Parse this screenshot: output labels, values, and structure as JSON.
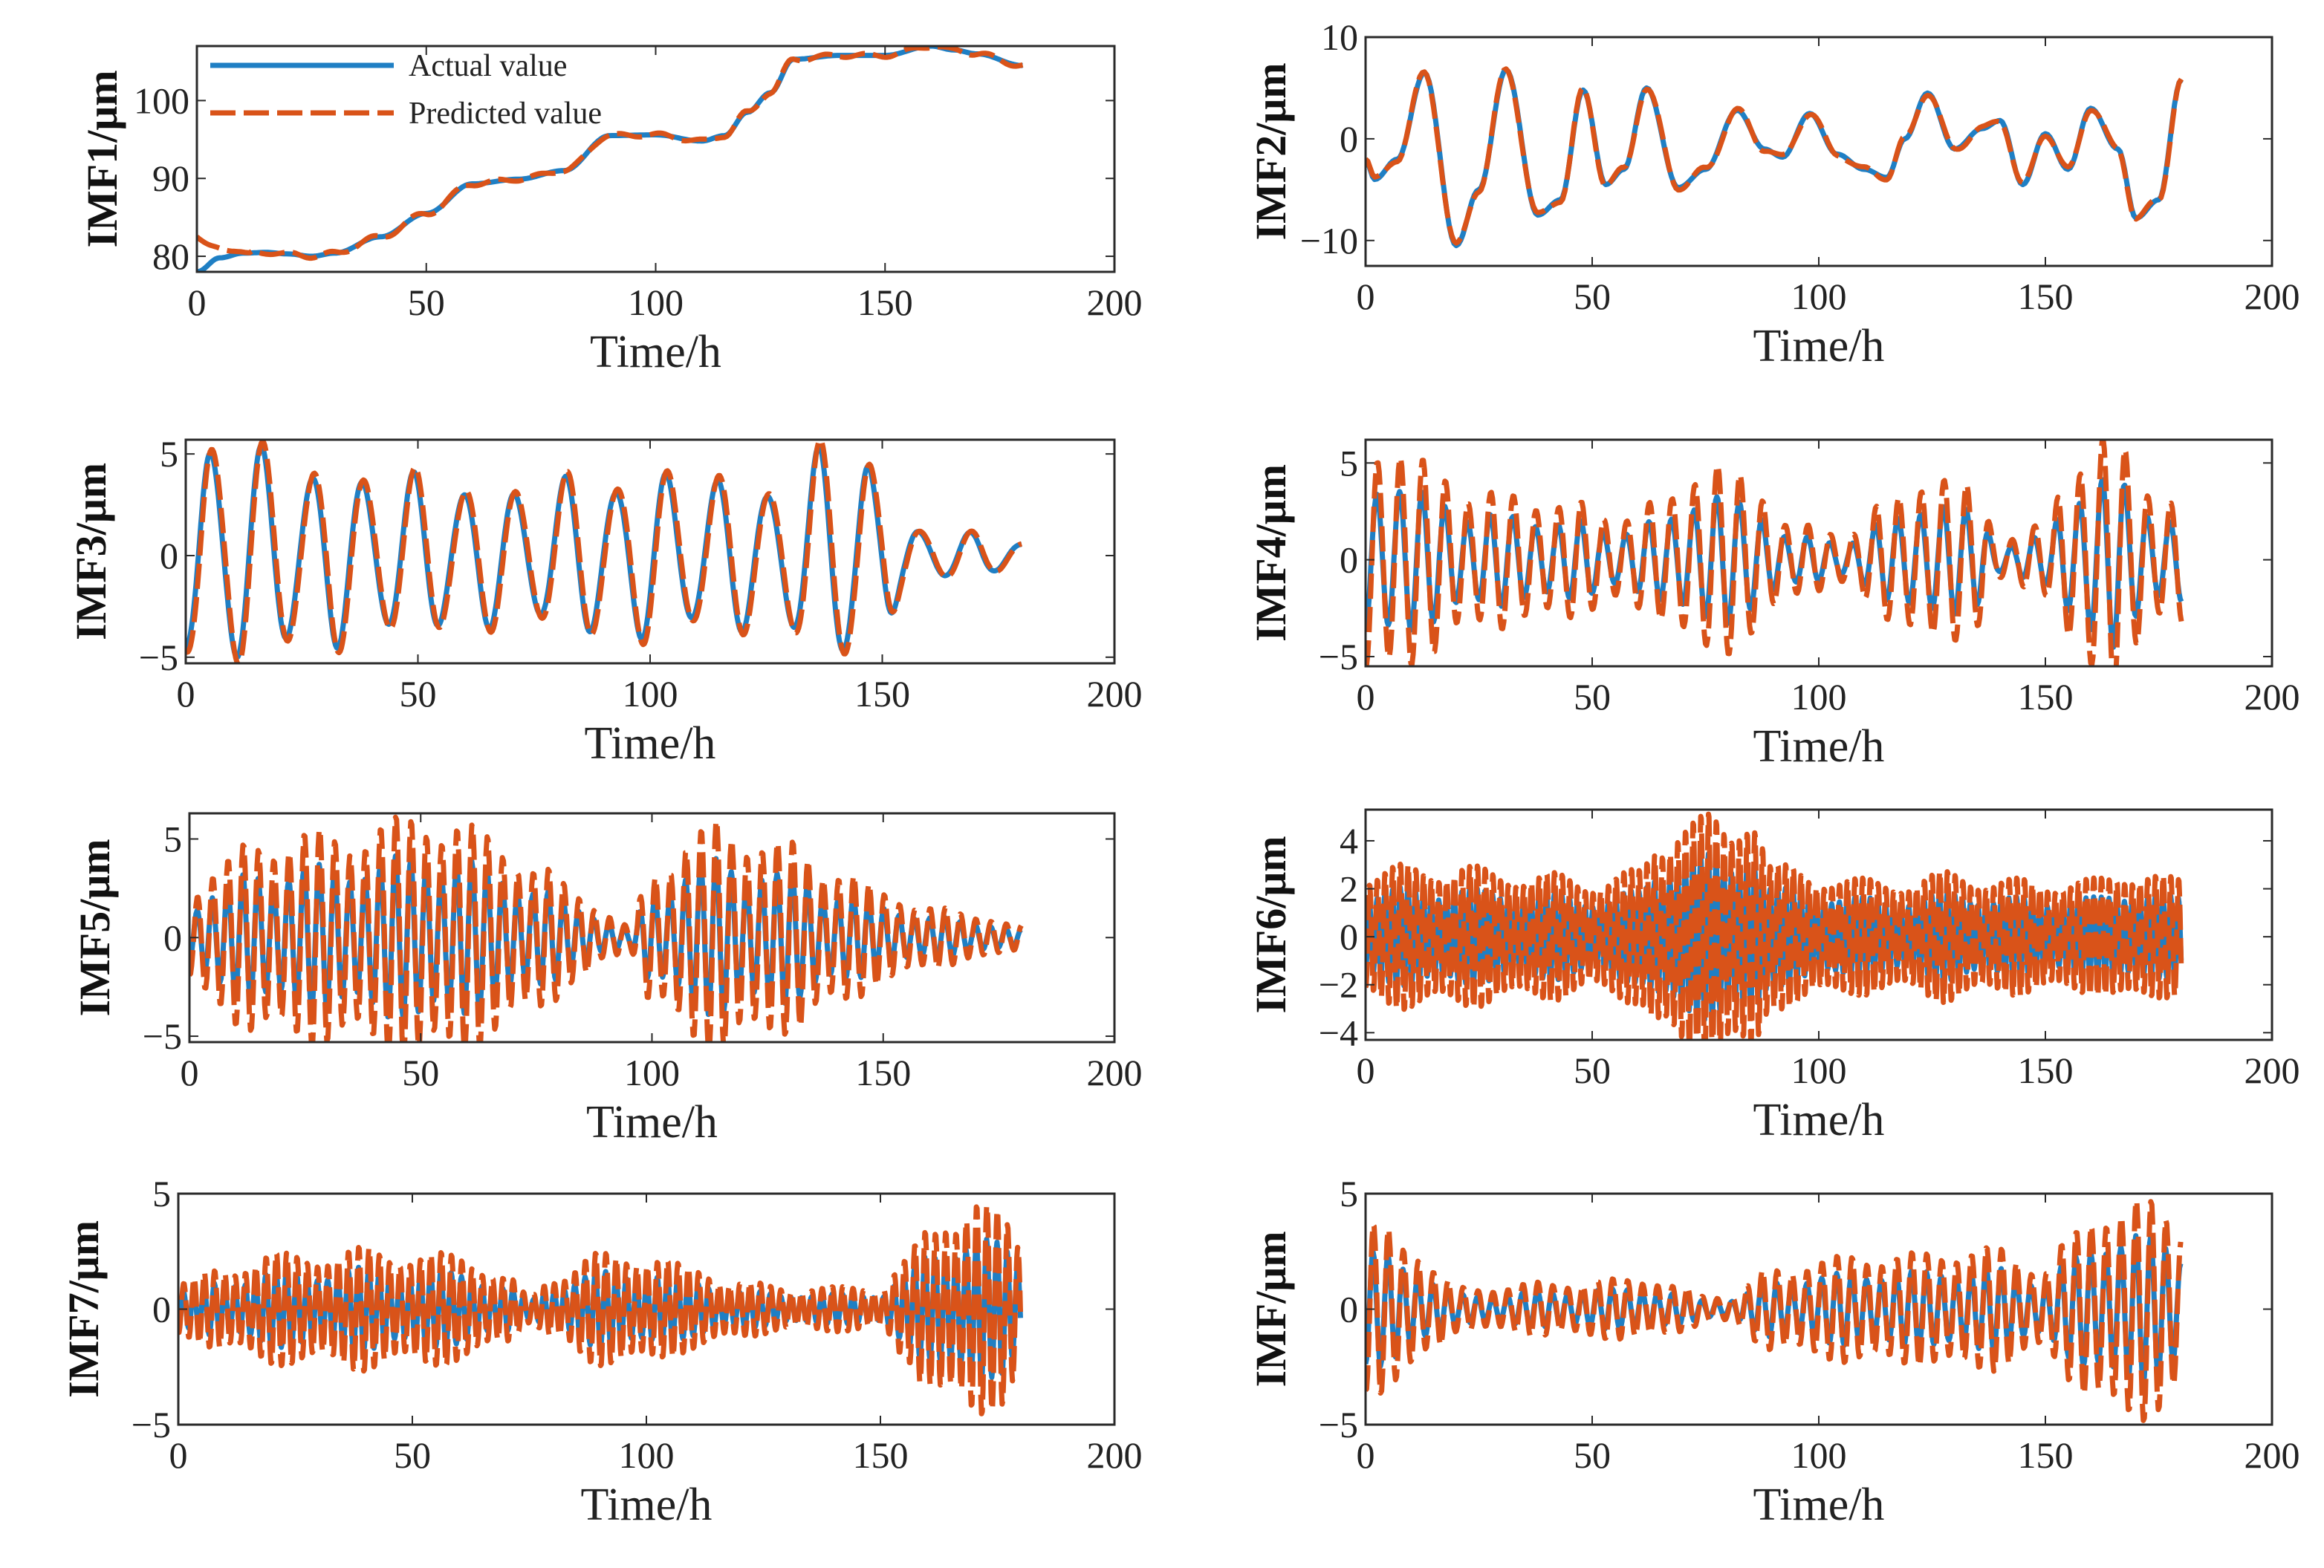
{
  "colors": {
    "actual": "#1f7fc4",
    "predicted": "#d95319"
  },
  "legend": {
    "actual": "Actual value",
    "predicted": "Predicted value"
  },
  "chart_data": [
    {
      "type": "line",
      "ylabel": "IMF1/μm",
      "xlabel": "Time/h",
      "xlim": [
        0,
        200
      ],
      "ylim": [
        78,
        107
      ],
      "xticks": [
        0,
        50,
        100,
        150,
        200
      ],
      "yticks": [
        80,
        90,
        100
      ],
      "legend": "top-left",
      "keypoints": {
        "x": [
          0,
          5,
          10,
          15,
          20,
          25,
          30,
          40,
          50,
          60,
          70,
          80,
          90,
          100,
          110,
          115,
          120,
          125,
          130,
          140,
          150,
          160,
          165,
          170,
          180
        ],
        "y": [
          78,
          79.8,
          80.4,
          80.5,
          80.3,
          80,
          80.4,
          82.5,
          85.5,
          89.3,
          89.9,
          91,
          95.5,
          95.6,
          94.8,
          95.5,
          98.5,
          101,
          105.3,
          105.8,
          105.8,
          107,
          106.5,
          106,
          104.5
        ]
      },
      "predicted_start": [
        82.5,
        81.8,
        81
      ]
    },
    {
      "type": "line",
      "ylabel": "IMF2/μm",
      "xlabel": "Time/h",
      "xlim": [
        0,
        200
      ],
      "ylim": [
        -12.5,
        10
      ],
      "xticks": [
        0,
        50,
        100,
        150,
        200
      ],
      "yticks": [
        -10,
        0,
        10
      ],
      "keypoints": {
        "x": [
          0,
          2,
          7,
          13,
          20,
          25,
          31,
          38,
          43,
          48,
          53,
          57,
          62,
          69,
          75,
          82,
          88,
          92,
          98,
          104,
          110,
          115,
          119,
          124,
          130,
          136,
          140,
          145,
          150,
          155,
          160,
          166,
          170,
          175,
          180
        ],
        "y": [
          -2,
          -4,
          -2,
          6.5,
          -10.5,
          -5,
          6.8,
          -7.5,
          -6,
          4.8,
          -4.5,
          -3,
          5,
          -4.8,
          -3,
          2.8,
          -1,
          -1.8,
          2.5,
          -1.5,
          -3,
          -3.8,
          0,
          4.5,
          -1,
          1,
          1.8,
          -4.5,
          0.5,
          -3,
          3,
          -1,
          -7.8,
          -6,
          5.8
        ]
      }
    },
    {
      "type": "line",
      "ylabel": "IMF3/μm",
      "xlabel": "Time/h",
      "xlim": [
        0,
        200
      ],
      "ylim": [
        -5.3,
        5.7
      ],
      "xticks": [
        0,
        50,
        100,
        150,
        200
      ],
      "yticks": [
        -5,
        0,
        5
      ],
      "period": 10.9,
      "x_end": 180,
      "amplitude": {
        "x": [
          0,
          5,
          10,
          20,
          30,
          40,
          50,
          60,
          70,
          80,
          90,
          100,
          110,
          120,
          130,
          140,
          145,
          150,
          155,
          160,
          165,
          170,
          175,
          180
        ],
        "y": [
          4,
          5.7,
          5.2,
          4.5,
          4,
          3.8,
          3.6,
          3.4,
          3,
          3.5,
          3.6,
          3.8,
          3.6,
          3.4,
          3.4,
          5.4,
          5.2,
          3.2,
          1.5,
          1.2,
          1,
          1,
          0.8,
          0.6
        ]
      }
    },
    {
      "type": "line",
      "ylabel": "IMF4/μm",
      "xlabel": "Time/h",
      "xlim": [
        0,
        200
      ],
      "ylim": [
        -5.5,
        6.2
      ],
      "xticks": [
        0,
        50,
        100,
        150,
        200
      ],
      "yticks": [
        -5,
        0,
        5
      ],
      "period": 5,
      "x_end": 180,
      "amplitude": {
        "x": [
          0,
          5,
          15,
          25,
          35,
          45,
          55,
          65,
          75,
          85,
          95,
          105,
          115,
          125,
          135,
          140,
          150,
          155,
          160,
          165,
          170,
          175,
          180
        ],
        "y": [
          5,
          5.5,
          4,
          3,
          2.8,
          2.5,
          2,
          2.5,
          4.5,
          3.5,
          1.5,
          1.2,
          2.5,
          4,
          3,
          1,
          1.5,
          4,
          5.5,
          5.5,
          4,
          3,
          2.8
        ]
      }
    },
    {
      "type": "line",
      "ylabel": "IMF5/μm",
      "xlabel": "Time/h",
      "xlim": [
        0,
        200
      ],
      "ylim": [
        -5.3,
        6.3
      ],
      "xticks": [
        0,
        50,
        100,
        150,
        200
      ],
      "yticks": [
        -5,
        0,
        5
      ],
      "period": 3.3,
      "x_end": 180,
      "amplitude": {
        "x": [
          0,
          5,
          15,
          25,
          35,
          45,
          50,
          55,
          65,
          75,
          85,
          90,
          95,
          100,
          110,
          115,
          120,
          130,
          140,
          150,
          160,
          170,
          180
        ],
        "y": [
          2,
          3,
          4.2,
          4.5,
          4.5,
          5,
          5.5,
          5,
          4.5,
          3,
          2,
          1,
          0.5,
          3,
          4.5,
          5,
          4.5,
          4,
          3,
          2,
          1.3,
          1,
          0.5
        ]
      }
    },
    {
      "type": "line",
      "ylabel": "IMF6/μm",
      "xlabel": "Time/h",
      "xlim": [
        0,
        200
      ],
      "ylim": [
        -4.3,
        5.3
      ],
      "xticks": [
        0,
        50,
        100,
        150,
        200
      ],
      "yticks": [
        -4,
        -2,
        0,
        2,
        4
      ],
      "period": 1.7,
      "x_end": 180,
      "amplitude": {
        "x": [
          0,
          10,
          20,
          30,
          40,
          50,
          60,
          65,
          70,
          75,
          80,
          85,
          90,
          100,
          110,
          120,
          130,
          140,
          150,
          160,
          170,
          180
        ],
        "y": [
          2.3,
          2.5,
          2.5,
          2.3,
          2.2,
          2,
          2.3,
          3.5,
          4.3,
          4.2,
          3.8,
          4.8,
          2.5,
          2.2,
          2,
          2,
          2.3,
          2,
          2,
          2,
          2.4,
          2
        ]
      }
    },
    {
      "type": "line",
      "ylabel": "IMF7/μm",
      "xlabel": "Time/h",
      "xlim": [
        0,
        200
      ],
      "ylim": [
        -5,
        5
      ],
      "xticks": [
        0,
        50,
        100,
        150,
        200
      ],
      "yticks": [
        -5,
        0,
        5
      ],
      "period": 2.2,
      "x_end": 180,
      "amplitude": {
        "x": [
          0,
          10,
          20,
          30,
          40,
          50,
          60,
          70,
          75,
          80,
          90,
          100,
          110,
          120,
          130,
          140,
          150,
          155,
          160,
          165,
          170,
          175,
          180
        ],
        "y": [
          1,
          1.5,
          2,
          2,
          2.2,
          2,
          2,
          1.2,
          0.5,
          1.2,
          2,
          2,
          1.5,
          1,
          0.8,
          0.8,
          0.8,
          1.8,
          2.8,
          3.5,
          4.2,
          3.5,
          2.5
        ]
      }
    },
    {
      "type": "line",
      "ylabel": "IMF/μm",
      "xlabel": "Time/h",
      "xlim": [
        0,
        200
      ],
      "ylim": [
        -5,
        5
      ],
      "xticks": [
        0,
        50,
        100,
        150,
        200
      ],
      "yticks": [
        -5,
        0,
        5
      ],
      "period": 3.3,
      "x_end": 180,
      "amplitude": {
        "x": [
          0,
          5,
          10,
          15,
          20,
          30,
          40,
          50,
          60,
          70,
          75,
          80,
          90,
          100,
          110,
          120,
          130,
          140,
          150,
          155,
          160,
          165,
          170,
          175,
          180
        ],
        "y": [
          3,
          3,
          2.5,
          1.5,
          0.8,
          0.8,
          1,
          1,
          1.2,
          0.8,
          0.5,
          0.5,
          1.5,
          1.8,
          2,
          2,
          2.2,
          2.2,
          1.5,
          2.5,
          3.5,
          4,
          4,
          3.8,
          3.2
        ]
      }
    }
  ]
}
